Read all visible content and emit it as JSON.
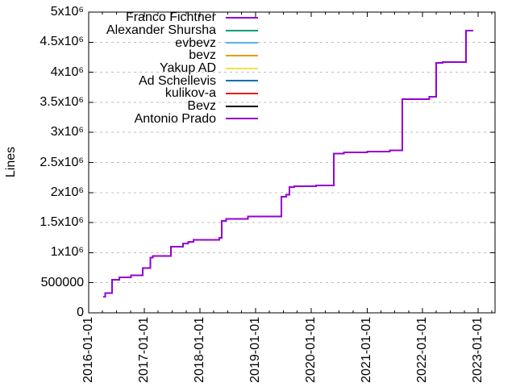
{
  "chart_data": {
    "type": "line",
    "title": "",
    "xlabel": "",
    "ylabel": "Lines",
    "x_type": "date",
    "xrange": [
      "2016-01-01",
      "2023-04-21"
    ],
    "ylim": [
      0,
      5000000
    ],
    "background": "#ffffff",
    "axis_color": "#000000",
    "grid": {
      "horizontal": true,
      "vertical": false,
      "style": "dashed",
      "color": "#bdbdbd"
    },
    "legend_position": "top-left-inside",
    "x_major_ticks": [
      "2016-01-01",
      "2017-01-01",
      "2018-01-01",
      "2019-01-01",
      "2020-01-01",
      "2021-01-01",
      "2022-01-01",
      "2023-01-01"
    ],
    "x_minor_tick_months": [
      "04",
      "07",
      "10"
    ],
    "y_ticks": [
      {
        "value": 0,
        "label": "0"
      },
      {
        "value": 500000,
        "label": "500000"
      },
      {
        "value": 1000000,
        "label": "1x10⁶"
      },
      {
        "value": 1500000,
        "label": "1.5x10⁶"
      },
      {
        "value": 2000000,
        "label": "2x10⁶"
      },
      {
        "value": 2500000,
        "label": "2.5x10⁶"
      },
      {
        "value": 3000000,
        "label": "3x10⁶"
      },
      {
        "value": 3500000,
        "label": "3.5x10⁶"
      },
      {
        "value": 4000000,
        "label": "4x10⁶"
      },
      {
        "value": 4500000,
        "label": "4.5x10⁶"
      },
      {
        "value": 5000000,
        "label": "5x10⁶"
      }
    ],
    "series": [
      {
        "name": "Franco Fichtner",
        "color": "#9400d3"
      },
      {
        "name": "Alexander Shursha",
        "color": "#009e73"
      },
      {
        "name": "evbevz",
        "color": "#56b4e9"
      },
      {
        "name": "bevz",
        "color": "#e69f00"
      },
      {
        "name": "Yakup AD",
        "color": "#f0e442"
      },
      {
        "name": "Ad Schellevis",
        "color": "#0072b2"
      },
      {
        "name": "kulikov-a",
        "color": "#e51e10"
      },
      {
        "name": "Bevz",
        "color": "#000000"
      },
      {
        "name": "Antonio Prado",
        "color": "#9400d3"
      }
    ],
    "visible_curve": {
      "name": "Antonio Prado",
      "color": "#9400d3",
      "mode": "step-after",
      "points": [
        [
          "2016-04-05",
          270000
        ],
        [
          "2016-04-18",
          330000
        ],
        [
          "2016-06-02",
          550000
        ],
        [
          "2016-07-20",
          590000
        ],
        [
          "2016-10-05",
          620000
        ],
        [
          "2016-12-20",
          745000
        ],
        [
          "2017-02-10",
          920000
        ],
        [
          "2017-02-26",
          945000
        ],
        [
          "2017-06-25",
          1100000
        ],
        [
          "2017-09-10",
          1150000
        ],
        [
          "2017-10-15",
          1180000
        ],
        [
          "2017-11-20",
          1210000
        ],
        [
          "2018-05-07",
          1250000
        ],
        [
          "2018-05-23",
          1530000
        ],
        [
          "2018-06-20",
          1560000
        ],
        [
          "2018-11-12",
          1600000
        ],
        [
          "2019-06-18",
          1930000
        ],
        [
          "2019-07-20",
          1965000
        ],
        [
          "2019-08-10",
          2090000
        ],
        [
          "2019-09-12",
          2105000
        ],
        [
          "2020-02-01",
          2120000
        ],
        [
          "2020-05-27",
          2650000
        ],
        [
          "2020-08-01",
          2670000
        ],
        [
          "2021-01-03",
          2680000
        ],
        [
          "2021-05-31",
          2700000
        ],
        [
          "2021-08-20",
          3550000
        ],
        [
          "2022-02-13",
          3590000
        ],
        [
          "2022-03-31",
          4155000
        ],
        [
          "2022-05-12",
          4170000
        ],
        [
          "2022-10-12",
          4690000
        ],
        [
          "2022-11-28",
          4690000
        ]
      ]
    }
  }
}
